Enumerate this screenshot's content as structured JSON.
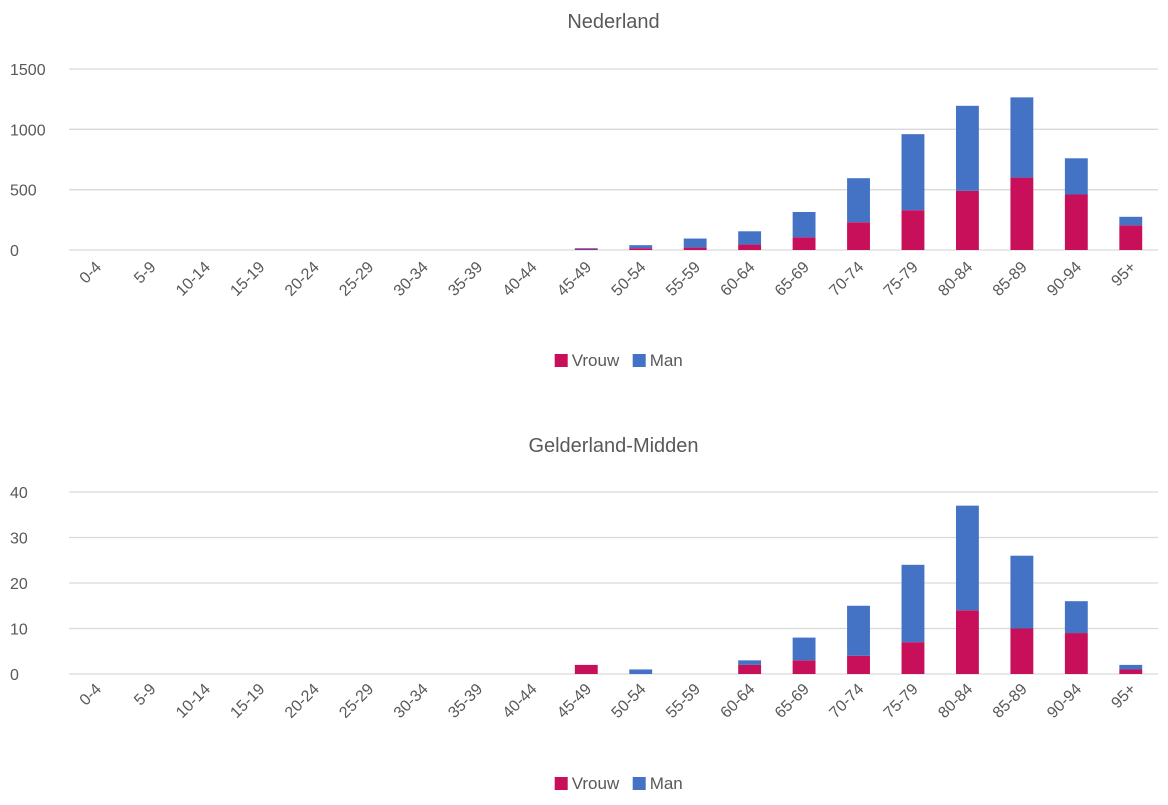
{
  "chart_data": [
    {
      "type": "bar",
      "stacked": true,
      "title": "Nederland",
      "xlabel": "",
      "ylabel": "",
      "categories": [
        "0-4",
        "5-9",
        "10-14",
        "15-19",
        "20-24",
        "25-29",
        "30-34",
        "35-39",
        "40-44",
        "45-49",
        "50-54",
        "55-59",
        "60-64",
        "65-69",
        "70-74",
        "75-79",
        "80-84",
        "85-89",
        "90-94",
        "95+"
      ],
      "series": [
        {
          "name": "Vrouw",
          "color": "#C8105A",
          "values": [
            0,
            0,
            0,
            0,
            0,
            0,
            0,
            0,
            0,
            8,
            15,
            20,
            45,
            105,
            230,
            330,
            490,
            600,
            460,
            205
          ]
        },
        {
          "name": "Man",
          "color": "#4472C4",
          "values": [
            0,
            0,
            0,
            0,
            0,
            0,
            0,
            0,
            0,
            7,
            25,
            75,
            110,
            210,
            365,
            630,
            705,
            665,
            300,
            70
          ]
        }
      ],
      "ylim": [
        0,
        1500
      ],
      "yticks": [
        0,
        500,
        1000,
        1500
      ],
      "grid": true,
      "legend": "bottom"
    },
    {
      "type": "bar",
      "stacked": true,
      "title": "Gelderland-Midden",
      "xlabel": "",
      "ylabel": "",
      "categories": [
        "0-4",
        "5-9",
        "10-14",
        "15-19",
        "20-24",
        "25-29",
        "30-34",
        "35-39",
        "40-44",
        "45-49",
        "50-54",
        "55-59",
        "60-64",
        "65-69",
        "70-74",
        "75-79",
        "80-84",
        "85-89",
        "90-94",
        "95+"
      ],
      "series": [
        {
          "name": "Vrouw",
          "color": "#C8105A",
          "values": [
            0,
            0,
            0,
            0,
            0,
            0,
            0,
            0,
            0,
            2,
            0,
            0,
            2,
            3,
            4,
            7,
            14,
            10,
            9,
            1
          ]
        },
        {
          "name": "Man",
          "color": "#4472C4",
          "values": [
            0,
            0,
            0,
            0,
            0,
            0,
            0,
            0,
            0,
            0,
            1,
            0,
            1,
            5,
            11,
            17,
            23,
            16,
            7,
            1
          ]
        }
      ],
      "ylim": [
        0,
        40
      ],
      "yticks": [
        0,
        10,
        20,
        30,
        40
      ],
      "grid": true,
      "legend": "bottom"
    }
  ]
}
